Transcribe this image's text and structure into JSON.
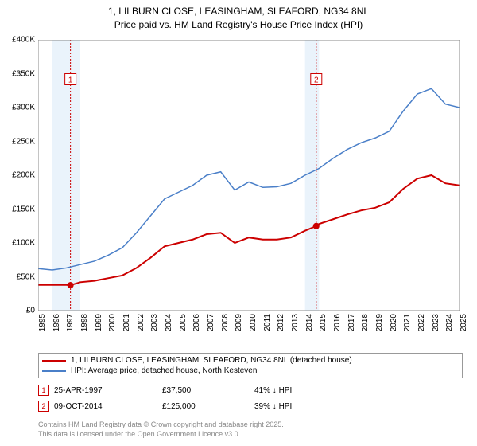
{
  "title_line1": "1, LILBURN CLOSE, LEASINGHAM, SLEAFORD, NG34 8NL",
  "title_line2": "Price paid vs. HM Land Registry's House Price Index (HPI)",
  "chart": {
    "type": "line",
    "background_color": "#ffffff",
    "plot_border_color": "#888888",
    "y_axis": {
      "min": 0,
      "max": 400000,
      "tick_step": 50000,
      "prefix": "£",
      "suffix": "K",
      "divide": 1000,
      "font_size": 10,
      "color": "#000000"
    },
    "x_axis": {
      "years": [
        1995,
        1996,
        1997,
        1998,
        1999,
        2000,
        2001,
        2002,
        2003,
        2004,
        2005,
        2006,
        2007,
        2008,
        2009,
        2010,
        2011,
        2012,
        2013,
        2014,
        2015,
        2016,
        2017,
        2018,
        2019,
        2020,
        2021,
        2022,
        2023,
        2024,
        2025
      ],
      "font_size": 10,
      "color": "#000000",
      "rotation": -90
    },
    "shaded_bands": [
      {
        "start_year": 1996,
        "end_year": 1998,
        "color": "#eaf3fb"
      },
      {
        "start_year": 2014,
        "end_year": 2015,
        "color": "#eaf3fb"
      }
    ],
    "marker_vlines": [
      {
        "year": 1997.3,
        "color": "#cc0000",
        "dash": "2,2"
      },
      {
        "year": 2014.8,
        "color": "#cc0000",
        "dash": "2,2"
      }
    ],
    "series": [
      {
        "name": "price_paid",
        "color": "#cc0000",
        "line_width": 2,
        "points": [
          [
            1995,
            38000
          ],
          [
            1996,
            38000
          ],
          [
            1997,
            38000
          ],
          [
            1997.3,
            37500
          ],
          [
            1998,
            42000
          ],
          [
            1999,
            44000
          ],
          [
            2000,
            48000
          ],
          [
            2001,
            52000
          ],
          [
            2002,
            63000
          ],
          [
            2003,
            78000
          ],
          [
            2004,
            95000
          ],
          [
            2005,
            100000
          ],
          [
            2006,
            105000
          ],
          [
            2007,
            113000
          ],
          [
            2008,
            115000
          ],
          [
            2009,
            100000
          ],
          [
            2010,
            108000
          ],
          [
            2011,
            105000
          ],
          [
            2012,
            105000
          ],
          [
            2013,
            108000
          ],
          [
            2014,
            118000
          ],
          [
            2014.8,
            125000
          ],
          [
            2015,
            128000
          ],
          [
            2016,
            135000
          ],
          [
            2017,
            142000
          ],
          [
            2018,
            148000
          ],
          [
            2019,
            152000
          ],
          [
            2020,
            160000
          ],
          [
            2021,
            180000
          ],
          [
            2022,
            195000
          ],
          [
            2023,
            200000
          ],
          [
            2024,
            188000
          ],
          [
            2025,
            185000
          ]
        ]
      },
      {
        "name": "hpi",
        "color": "#4a7fc8",
        "line_width": 1.5,
        "points": [
          [
            1995,
            62000
          ],
          [
            1996,
            60000
          ],
          [
            1997,
            63000
          ],
          [
            1998,
            68000
          ],
          [
            1999,
            73000
          ],
          [
            2000,
            82000
          ],
          [
            2001,
            93000
          ],
          [
            2002,
            115000
          ],
          [
            2003,
            140000
          ],
          [
            2004,
            165000
          ],
          [
            2005,
            175000
          ],
          [
            2006,
            185000
          ],
          [
            2007,
            200000
          ],
          [
            2008,
            205000
          ],
          [
            2009,
            178000
          ],
          [
            2010,
            190000
          ],
          [
            2011,
            182000
          ],
          [
            2012,
            183000
          ],
          [
            2013,
            188000
          ],
          [
            2014,
            200000
          ],
          [
            2015,
            210000
          ],
          [
            2016,
            225000
          ],
          [
            2017,
            238000
          ],
          [
            2018,
            248000
          ],
          [
            2019,
            255000
          ],
          [
            2020,
            265000
          ],
          [
            2021,
            295000
          ],
          [
            2022,
            320000
          ],
          [
            2023,
            328000
          ],
          [
            2024,
            305000
          ],
          [
            2025,
            300000
          ]
        ]
      }
    ],
    "sale_markers": [
      {
        "label": "1",
        "year": 1997.3,
        "value": 37500,
        "box_color": "#cc0000",
        "box_y": 350000
      },
      {
        "label": "2",
        "year": 2014.8,
        "value": 125000,
        "box_color": "#cc0000",
        "box_y": 350000
      }
    ]
  },
  "legend": {
    "items": [
      {
        "color": "#cc0000",
        "label": "1, LILBURN CLOSE, LEASINGHAM, SLEAFORD, NG34 8NL (detached house)"
      },
      {
        "color": "#4a7fc8",
        "label": "HPI: Average price, detached house, North Kesteven"
      }
    ]
  },
  "sales": [
    {
      "num": "1",
      "date": "25-APR-1997",
      "price": "£37,500",
      "pct": "41% ↓ HPI",
      "color": "#cc0000"
    },
    {
      "num": "2",
      "date": "09-OCT-2014",
      "price": "£125,000",
      "pct": "39% ↓ HPI",
      "color": "#cc0000"
    }
  ],
  "footer_line1": "Contains HM Land Registry data © Crown copyright and database right 2025.",
  "footer_line2": "This data is licensed under the Open Government Licence v3.0."
}
